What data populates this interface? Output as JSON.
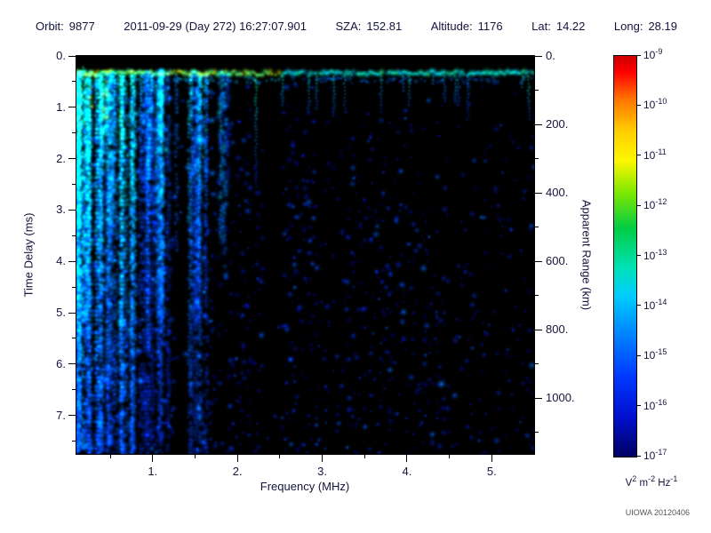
{
  "header": {
    "items": [
      {
        "label": "Orbit:",
        "value": "9877"
      },
      {
        "label": "",
        "value": "2011-09-29 (Day 272) 16:27:07.901"
      },
      {
        "label": "SZA:",
        "value": "152.81"
      },
      {
        "label": "Altitude:",
        "value": "1176"
      },
      {
        "label": "Lat:",
        "value": "14.22"
      },
      {
        "label": "Long:",
        "value": "28.19"
      }
    ]
  },
  "chart_data": {
    "type": "heatmap",
    "xlabel": "Frequency (MHz)",
    "ylabel": "Time Delay (ms)",
    "y2label": "Apparent Range (km)",
    "x_range_mhz": [
      0.1,
      5.5
    ],
    "y_range_ms": [
      0,
      7.75
    ],
    "y2_range_km": [
      0,
      1162
    ],
    "x_ticks": [
      "1.",
      "2.",
      "3.",
      "4.",
      "5."
    ],
    "x_tick_values": [
      1,
      2,
      3,
      4,
      5
    ],
    "y_ticks": [
      "0.",
      "1.",
      "2.",
      "3.",
      "4.",
      "5.",
      "6.",
      "7."
    ],
    "y_tick_values": [
      0,
      1,
      2,
      3,
      4,
      5,
      6,
      7
    ],
    "y2_ticks": [
      "0.",
      "200.",
      "400.",
      "600.",
      "800.",
      "1000."
    ],
    "y2_tick_values": [
      0,
      200,
      400,
      600,
      800,
      1000
    ],
    "colorbar": {
      "unit_parts": [
        {
          "base": "V",
          "exp": "2"
        },
        {
          "base": " m",
          "exp": "-2"
        },
        {
          "base": " Hz",
          "exp": "-1"
        }
      ],
      "ticks": [
        {
          "base": "10",
          "exp": "-9"
        },
        {
          "base": "10",
          "exp": "-10"
        },
        {
          "base": "10",
          "exp": "-11"
        },
        {
          "base": "10",
          "exp": "-12"
        },
        {
          "base": "10",
          "exp": "-13"
        },
        {
          "base": "10",
          "exp": "-14"
        },
        {
          "base": "10",
          "exp": "-15"
        },
        {
          "base": "10",
          "exp": "-16"
        },
        {
          "base": "10",
          "exp": "-17"
        }
      ],
      "stops": [
        {
          "p": 0,
          "c": "#cc0000"
        },
        {
          "p": 4,
          "c": "#ff0000"
        },
        {
          "p": 11,
          "c": "#ff7700"
        },
        {
          "p": 19,
          "c": "#ffd000"
        },
        {
          "p": 26,
          "c": "#fff600"
        },
        {
          "p": 34,
          "c": "#7fe800"
        },
        {
          "p": 43,
          "c": "#00cc44"
        },
        {
          "p": 53,
          "c": "#00e2b8"
        },
        {
          "p": 60,
          "c": "#00ccff"
        },
        {
          "p": 70,
          "c": "#0080ff"
        },
        {
          "p": 80,
          "c": "#0038ff"
        },
        {
          "p": 90,
          "c": "#0010d0"
        },
        {
          "p": 100,
          "c": "#000060"
        }
      ]
    },
    "features": {
      "background": "#000000",
      "seed": 987729,
      "surface_echo": {
        "delay_ms": 0.33,
        "note": "bright green-yellow surface reflection band across all frequencies near 0.3 ms"
      },
      "ionosphere": {
        "max_mhz": 1.9,
        "streak_count": 78,
        "note": "vertical plasma-oscillation streaks below ~1.9 MHz, green fading to blue with depth"
      },
      "speckle": {
        "count": 2800,
        "note": "scattered blue noise blobs, denser at low frequency and in 3.3-4.4 MHz band below 1.3 ms"
      },
      "dark_columns_mhz": [
        [
          1.25,
          1.48
        ],
        [
          2.3,
          2.52
        ]
      ]
    }
  },
  "credit": "UIOWA 20120406"
}
